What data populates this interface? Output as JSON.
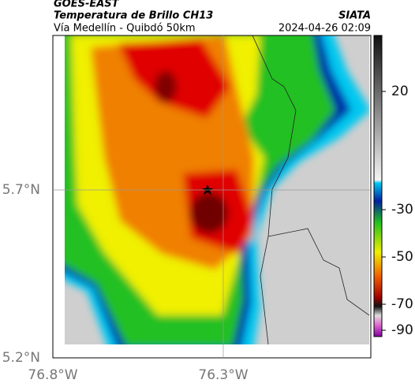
{
  "header": {
    "title": "GOES-EAST",
    "subtitle": "Temperatura de Brillo CH13",
    "route": "Vía Medellín - Quibdó 50km",
    "source": "SIATA",
    "datetime": "2024-04-26 02:09"
  },
  "map": {
    "xlim": [
      -76.8,
      -75.867
    ],
    "ylim": [
      5.2,
      6.16
    ],
    "xticks": [
      {
        "value": -76.8,
        "label": "76.8°W"
      },
      {
        "value": -76.3,
        "label": "76.3°W"
      }
    ],
    "yticks": [
      {
        "value": 5.7,
        "label": "5.7°N"
      },
      {
        "value": 5.2,
        "label": "5.2°N"
      }
    ]
  },
  "colorbar": {
    "ticks": [
      20,
      -30,
      -50,
      -70,
      -90
    ]
  }
}
